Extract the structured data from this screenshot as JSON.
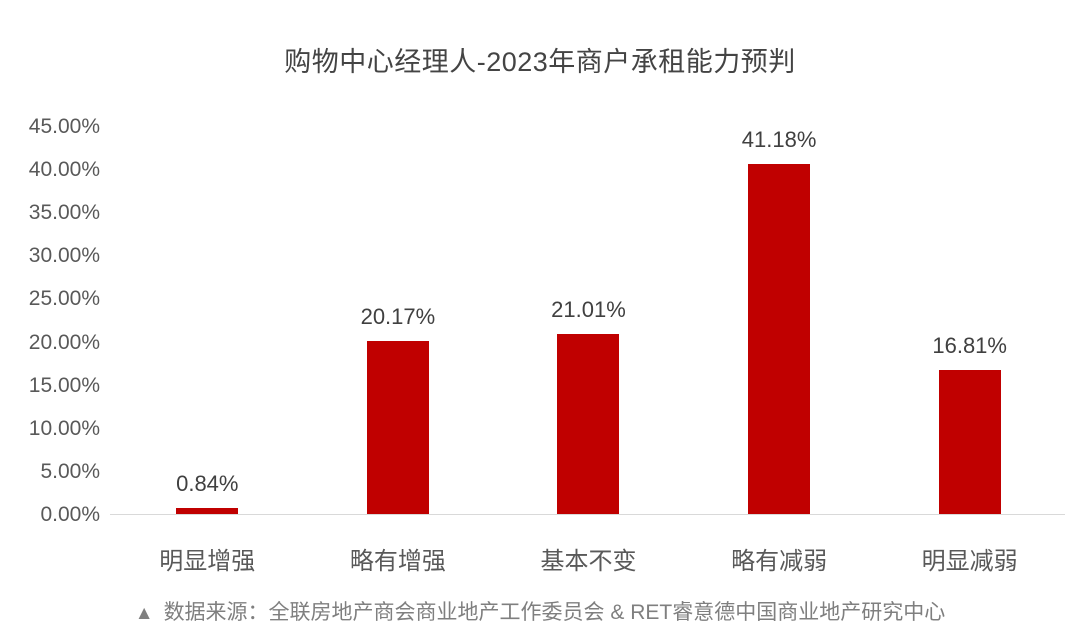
{
  "chart_data": {
    "type": "bar",
    "title": "购物中心经理人-2023年商户承租能力预判",
    "categories": [
      "明显增强",
      "略有增强",
      "基本不变",
      "略有减弱",
      "明显减弱"
    ],
    "values": [
      0.84,
      20.17,
      21.01,
      41.18,
      16.81
    ],
    "data_labels": [
      "0.84%",
      "20.17%",
      "21.01%",
      "41.18%",
      "16.81%"
    ],
    "xlabel": "",
    "ylabel": "",
    "ylim": [
      0,
      45
    ],
    "ytick_step": 5,
    "ytick_labels": [
      "0.00%",
      "5.00%",
      "10.00%",
      "15.00%",
      "20.00%",
      "25.00%",
      "30.00%",
      "35.00%",
      "40.00%",
      "45.00%"
    ],
    "grid": false,
    "legend": false,
    "bar_color": "#c00000"
  },
  "footer": {
    "marker": "▲",
    "text": "数据来源：全联房地产商会商业地产工作委员会 & RET睿意德中国商业地产研究中心"
  },
  "colors": {
    "bar": "#c00000",
    "title_text": "#444444",
    "axis_text": "#595959",
    "data_label_text": "#404040",
    "footer_text": "#7f7f7f",
    "axis_line": "#d9d9d9",
    "background": "#ffffff"
  }
}
